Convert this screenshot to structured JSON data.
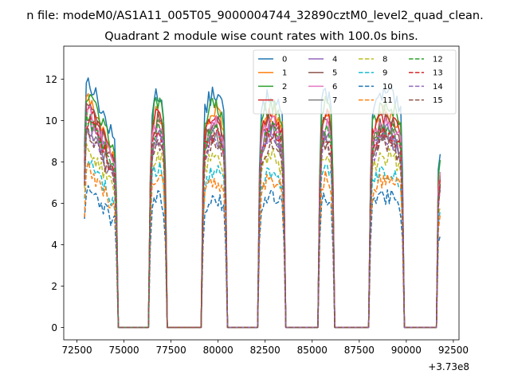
{
  "suptitle": "n file: modeM0/AS1A11_005T05_9000004744_32890cztM0_level2_quad_clean.",
  "chart_data": {
    "type": "line",
    "title": "Quadrant 2 module wise count rates with 100.0s bins.",
    "xlabel": "",
    "ylabel": "",
    "x_offset_label": "+3.73e8",
    "xlim": [
      71800,
      92800
    ],
    "ylim": [
      -0.6,
      13.6
    ],
    "xticks": [
      72500,
      75000,
      77500,
      80000,
      82500,
      85000,
      87500,
      90000,
      92500
    ],
    "yticks": [
      0,
      2,
      4,
      6,
      8,
      10,
      12
    ],
    "xtick_labels": [
      "72500",
      "75000",
      "77500",
      "80000",
      "82500",
      "85000",
      "87500",
      "90000",
      "92500"
    ],
    "ytick_labels": [
      "0",
      "2",
      "4",
      "6",
      "8",
      "10",
      "12"
    ],
    "grid": false,
    "legend_location": "top-right",
    "legend_columns": 4,
    "segments": [
      [
        72900,
        74600
      ],
      [
        76400,
        77200
      ],
      [
        79200,
        80400
      ],
      [
        82200,
        83500
      ],
      [
        85400,
        86100
      ],
      [
        88100,
        89800
      ],
      [
        91700,
        91850
      ]
    ],
    "series": [
      {
        "name": "0",
        "color": "#1f77b4",
        "dash": "solid",
        "level": 11.3
      },
      {
        "name": "1",
        "color": "#ff7f0e",
        "dash": "solid",
        "level": 10.4
      },
      {
        "name": "2",
        "color": "#2ca02c",
        "dash": "solid",
        "level": 10.8
      },
      {
        "name": "3",
        "color": "#d62728",
        "dash": "solid",
        "level": 10.2
      },
      {
        "name": "4",
        "color": "#9467bd",
        "dash": "solid",
        "level": 9.5
      },
      {
        "name": "5",
        "color": "#8c564b",
        "dash": "solid",
        "level": 10.0
      },
      {
        "name": "6",
        "color": "#e377c2",
        "dash": "solid",
        "level": 9.8
      },
      {
        "name": "7",
        "color": "#7f7f7f",
        "dash": "solid",
        "level": 9.2
      },
      {
        "name": "8",
        "color": "#bcbd22",
        "dash": "dashed",
        "level": 8.3
      },
      {
        "name": "9",
        "color": "#17becf",
        "dash": "dashed",
        "level": 7.6
      },
      {
        "name": "10",
        "color": "#1f77b4",
        "dash": "dashed",
        "level": 6.3
      },
      {
        "name": "11",
        "color": "#ff7f0e",
        "dash": "dashed",
        "level": 7.2
      },
      {
        "name": "12",
        "color": "#2ca02c",
        "dash": "dashed",
        "level": 9.6
      },
      {
        "name": "13",
        "color": "#d62728",
        "dash": "dashed",
        "level": 9.4
      },
      {
        "name": "14",
        "color": "#9467bd",
        "dash": "dashed",
        "level": 9.1
      },
      {
        "name": "15",
        "color": "#8c564b",
        "dash": "dashed",
        "level": 8.9
      }
    ]
  }
}
